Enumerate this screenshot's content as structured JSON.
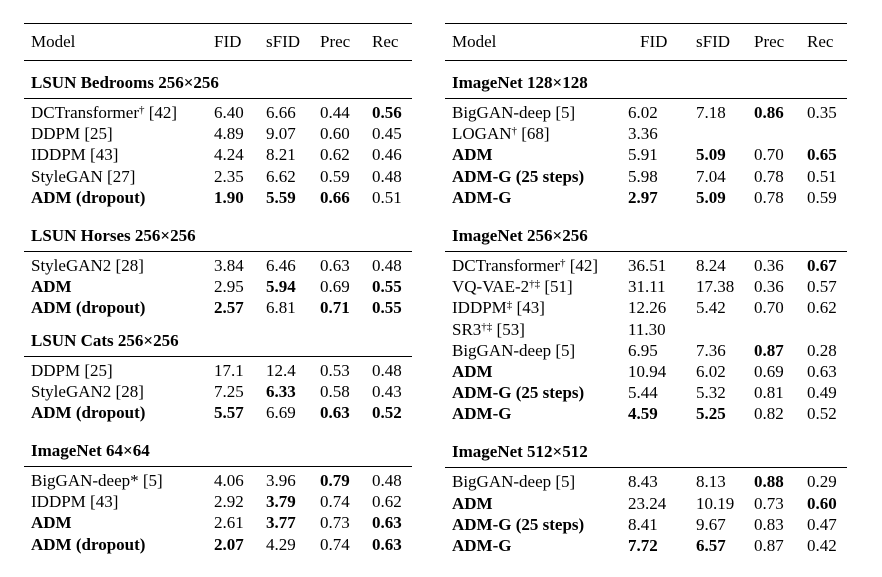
{
  "columns": {
    "model": "Model",
    "fid": "FID",
    "sfid": "sFID",
    "prec": "Prec",
    "rec": "Rec"
  },
  "left": [
    {
      "title": "LSUN Bedrooms 256×256",
      "rows": [
        {
          "model": "DCTransformer",
          "sup": "†",
          "ref": " [42]",
          "fid": "6.40",
          "sfid": "6.66",
          "prec": "0.44",
          "rec": "0.56",
          "bold": [
            "rec"
          ]
        },
        {
          "model": "DDPM [25]",
          "fid": "4.89",
          "sfid": "9.07",
          "prec": "0.60",
          "rec": "0.45",
          "bold": []
        },
        {
          "model": "IDDPM [43]",
          "fid": "4.24",
          "sfid": "8.21",
          "prec": "0.62",
          "rec": "0.46",
          "bold": []
        },
        {
          "model": "StyleGAN [27]",
          "fid": "2.35",
          "sfid": "6.62",
          "prec": "0.59",
          "rec": "0.48",
          "bold": []
        },
        {
          "model": "ADM (dropout)",
          "fid": "1.90",
          "sfid": "5.59",
          "prec": "0.66",
          "rec": "0.51",
          "bold": [
            "model",
            "fid",
            "sfid",
            "prec"
          ]
        }
      ]
    },
    {
      "title": "LSUN Horses 256×256",
      "rows": [
        {
          "model": "StyleGAN2 [28]",
          "fid": "3.84",
          "sfid": "6.46",
          "prec": "0.63",
          "rec": "0.48",
          "bold": []
        },
        {
          "model": "ADM",
          "fid": "2.95",
          "sfid": "5.94",
          "prec": "0.69",
          "rec": "0.55",
          "bold": [
            "model",
            "sfid",
            "rec"
          ]
        },
        {
          "model": "ADM (dropout)",
          "fid": "2.57",
          "sfid": "6.81",
          "prec": "0.71",
          "rec": "0.55",
          "bold": [
            "model",
            "fid",
            "prec",
            "rec"
          ]
        }
      ]
    },
    {
      "title": "LSUN Cats 256×256",
      "rows": [
        {
          "model": "DDPM [25]",
          "fid": "17.1",
          "sfid": "12.4",
          "prec": "0.53",
          "rec": "0.48",
          "bold": []
        },
        {
          "model": "StyleGAN2 [28]",
          "fid": "7.25",
          "sfid": "6.33",
          "prec": "0.58",
          "rec": "0.43",
          "bold": [
            "sfid"
          ]
        },
        {
          "model": "ADM (dropout)",
          "fid": "5.57",
          "sfid": "6.69",
          "prec": "0.63",
          "rec": "0.52",
          "bold": [
            "model",
            "fid",
            "prec",
            "rec"
          ]
        }
      ]
    },
    {
      "title": "ImageNet 64×64",
      "rows": [
        {
          "model": "BigGAN-deep* [5]",
          "fid": "4.06",
          "sfid": "3.96",
          "prec": "0.79",
          "rec": "0.48",
          "bold": [
            "prec"
          ]
        },
        {
          "model": "IDDPM [43]",
          "fid": "2.92",
          "sfid": "3.79",
          "prec": "0.74",
          "rec": "0.62",
          "bold": [
            "sfid"
          ]
        },
        {
          "model": "ADM",
          "fid": "2.61",
          "sfid": "3.77",
          "prec": "0.73",
          "rec": "0.63",
          "bold": [
            "model",
            "sfid",
            "rec"
          ]
        },
        {
          "model": "ADM (dropout)",
          "fid": "2.07",
          "sfid": "4.29",
          "prec": "0.74",
          "rec": "0.63",
          "bold": [
            "model",
            "fid",
            "rec"
          ]
        }
      ]
    }
  ],
  "right": [
    {
      "title": "ImageNet 128×128",
      "rows": [
        {
          "model": "BigGAN-deep [5]",
          "fid": "6.02",
          "sfid": "7.18",
          "prec": "0.86",
          "rec": "0.35",
          "bold": [
            "prec"
          ]
        },
        {
          "model": "LOGAN",
          "sup": "†",
          "ref": " [68]",
          "fid": "3.36",
          "sfid": "",
          "prec": "",
          "rec": "",
          "bold": []
        },
        {
          "model": "ADM",
          "fid": "5.91",
          "sfid": "5.09",
          "prec": "0.70",
          "rec": "0.65",
          "bold": [
            "model",
            "sfid",
            "rec"
          ]
        },
        {
          "model": "ADM-G (25 steps)",
          "fid": "5.98",
          "sfid": "7.04",
          "prec": "0.78",
          "rec": "0.51",
          "bold": [
            "model"
          ]
        },
        {
          "model": "ADM-G",
          "fid": "2.97",
          "sfid": "5.09",
          "prec": "0.78",
          "rec": "0.59",
          "bold": [
            "model",
            "fid",
            "sfid"
          ]
        }
      ]
    },
    {
      "title": "ImageNet 256×256",
      "rows": [
        {
          "model": "DCTransformer",
          "sup": "†",
          "ref": " [42]",
          "fid": "36.51",
          "sfid": "8.24",
          "prec": "0.36",
          "rec": "0.67",
          "bold": [
            "rec"
          ]
        },
        {
          "model": "VQ-VAE-2",
          "sup": "†‡",
          "ref": " [51]",
          "fid": "31.11",
          "sfid": "17.38",
          "prec": "0.36",
          "rec": "0.57",
          "bold": []
        },
        {
          "model": "IDDPM",
          "sup": "‡",
          "ref": " [43]",
          "fid": "12.26",
          "sfid": "5.42",
          "prec": "0.70",
          "rec": "0.62",
          "bold": []
        },
        {
          "model": "SR3",
          "sup": "†‡",
          "ref": " [53]",
          "fid": "11.30",
          "sfid": "",
          "prec": "",
          "rec": "",
          "bold": []
        },
        {
          "model": "BigGAN-deep [5]",
          "fid": "6.95",
          "sfid": "7.36",
          "prec": "0.87",
          "rec": "0.28",
          "bold": [
            "prec"
          ]
        },
        {
          "model": "ADM",
          "fid": "10.94",
          "sfid": "6.02",
          "prec": "0.69",
          "rec": "0.63",
          "bold": [
            "model"
          ]
        },
        {
          "model": "ADM-G (25 steps)",
          "fid": "5.44",
          "sfid": "5.32",
          "prec": "0.81",
          "rec": "0.49",
          "bold": [
            "model"
          ]
        },
        {
          "model": "ADM-G",
          "fid": "4.59",
          "sfid": "5.25",
          "prec": "0.82",
          "rec": "0.52",
          "bold": [
            "model",
            "fid",
            "sfid"
          ]
        }
      ]
    },
    {
      "title": "ImageNet 512×512",
      "rows": [
        {
          "model": "BigGAN-deep [5]",
          "fid": "8.43",
          "sfid": "8.13",
          "prec": "0.88",
          "rec": "0.29",
          "bold": [
            "prec"
          ]
        },
        {
          "model": "ADM",
          "fid": "23.24",
          "sfid": "10.19",
          "prec": "0.73",
          "rec": "0.60",
          "bold": [
            "model",
            "rec"
          ]
        },
        {
          "model": "ADM-G (25 steps)",
          "fid": "8.41",
          "sfid": "9.67",
          "prec": "0.83",
          "rec": "0.47",
          "bold": [
            "model"
          ]
        },
        {
          "model": "ADM-G",
          "fid": "7.72",
          "sfid": "6.57",
          "prec": "0.87",
          "rec": "0.42",
          "bold": [
            "model",
            "fid",
            "sfid"
          ]
        }
      ]
    }
  ]
}
